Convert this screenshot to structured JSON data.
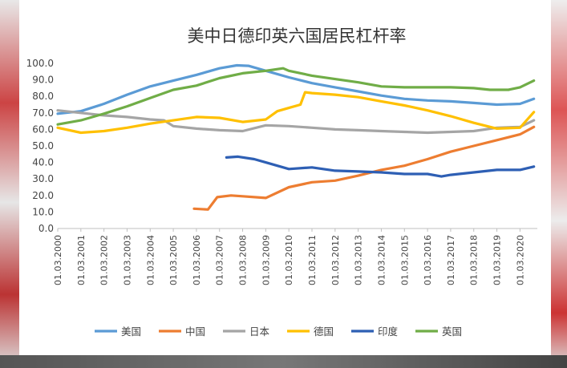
{
  "chart_data": {
    "type": "line",
    "title": "美中日德印英六国居民杠杆率",
    "xlabel": "",
    "ylabel": "",
    "ylim": [
      0,
      100
    ],
    "yticks": [
      "0.0",
      "10.0",
      "20.0",
      "30.0",
      "40.0",
      "50.0",
      "60.0",
      "70.0",
      "80.0",
      "90.0",
      "100.0"
    ],
    "x_tick_labels": [
      "01.03.2000",
      "01.03.2001",
      "01.03.2002",
      "01.03.2003",
      "01.03.2004",
      "01.03.2005",
      "01.03.2006",
      "01.03.2007",
      "01.03.2008",
      "01.03.2009",
      "01.03.2010",
      "01.03.2011",
      "01.03.2012",
      "01.03.2013",
      "01.03.2014",
      "01.03.2015",
      "01.03.2016",
      "01.03.2017",
      "01.03.2018",
      "01.03.2019",
      "01.03.2020"
    ],
    "x_range": [
      2000,
      2020.75
    ],
    "grid": false,
    "legend_position": "bottom",
    "series": [
      {
        "name": "美国",
        "color": "#5b9bd5",
        "points": [
          [
            2000,
            69.5
          ],
          [
            2001,
            71
          ],
          [
            2002,
            75.5
          ],
          [
            2003,
            81
          ],
          [
            2004,
            86
          ],
          [
            2005,
            89.5
          ],
          [
            2006,
            93
          ],
          [
            2007,
            97
          ],
          [
            2007.75,
            98.8
          ],
          [
            2008.25,
            98.5
          ],
          [
            2009,
            95.5
          ],
          [
            2010,
            91.5
          ],
          [
            2011,
            88
          ],
          [
            2012,
            85.5
          ],
          [
            2013,
            83
          ],
          [
            2014,
            80.5
          ],
          [
            2015,
            78.5
          ],
          [
            2016,
            77.5
          ],
          [
            2017,
            77
          ],
          [
            2018,
            76
          ],
          [
            2019,
            75
          ],
          [
            2020,
            75.5
          ],
          [
            2020.6,
            78.5
          ]
        ]
      },
      {
        "name": "中国",
        "color": "#ed7d31",
        "points": [
          [
            2005.9,
            12
          ],
          [
            2006.5,
            11.5
          ],
          [
            2006.9,
            19
          ],
          [
            2007.5,
            20
          ],
          [
            2008,
            19.5
          ],
          [
            2009,
            18.5
          ],
          [
            2010,
            25
          ],
          [
            2011,
            28
          ],
          [
            2012,
            29
          ],
          [
            2013,
            32
          ],
          [
            2014,
            35.5
          ],
          [
            2015,
            38
          ],
          [
            2016,
            42
          ],
          [
            2017,
            46.5
          ],
          [
            2018,
            50
          ],
          [
            2019,
            53.5
          ],
          [
            2020,
            57
          ],
          [
            2020.6,
            61.5
          ]
        ]
      },
      {
        "name": "日本",
        "color": "#a5a5a5",
        "points": [
          [
            2000,
            71.5
          ],
          [
            2001,
            70
          ],
          [
            2002,
            68.5
          ],
          [
            2003,
            67.5
          ],
          [
            2004,
            66
          ],
          [
            2004.6,
            65.5
          ],
          [
            2005,
            62
          ],
          [
            2006,
            60.5
          ],
          [
            2007,
            59.5
          ],
          [
            2008,
            59
          ],
          [
            2009,
            62.5
          ],
          [
            2010,
            62
          ],
          [
            2011,
            61
          ],
          [
            2012,
            60
          ],
          [
            2013,
            59.5
          ],
          [
            2014,
            59
          ],
          [
            2015,
            58.5
          ],
          [
            2016,
            58
          ],
          [
            2017,
            58.5
          ],
          [
            2018,
            59
          ],
          [
            2019,
            61
          ],
          [
            2020,
            61.5
          ],
          [
            2020.6,
            65.5
          ]
        ]
      },
      {
        "name": "德国",
        "color": "#ffc000",
        "points": [
          [
            2000,
            61
          ],
          [
            2001,
            58
          ],
          [
            2002,
            59
          ],
          [
            2003,
            61
          ],
          [
            2004,
            63.5
          ],
          [
            2005,
            65.5
          ],
          [
            2006,
            67.5
          ],
          [
            2007,
            67
          ],
          [
            2008,
            64.5
          ],
          [
            2009,
            66
          ],
          [
            2009.5,
            71
          ],
          [
            2010,
            73
          ],
          [
            2010.5,
            75
          ],
          [
            2010.7,
            82.5
          ],
          [
            2011,
            82
          ],
          [
            2012,
            81
          ],
          [
            2013,
            79.5
          ],
          [
            2014,
            77
          ],
          [
            2015,
            74.5
          ],
          [
            2016,
            71.5
          ],
          [
            2017,
            68
          ],
          [
            2018,
            64
          ],
          [
            2019,
            60.5
          ],
          [
            2020,
            61
          ],
          [
            2020.6,
            70.5
          ]
        ]
      },
      {
        "name": "印度",
        "color": "#2e5fb4",
        "points": [
          [
            2007.3,
            43
          ],
          [
            2007.8,
            43.5
          ],
          [
            2008.5,
            42
          ],
          [
            2009,
            40
          ],
          [
            2010,
            36
          ],
          [
            2011,
            37
          ],
          [
            2012,
            35
          ],
          [
            2013,
            34.5
          ],
          [
            2014,
            34
          ],
          [
            2015,
            33
          ],
          [
            2016,
            33
          ],
          [
            2016.6,
            31.5
          ],
          [
            2017,
            32.5
          ],
          [
            2018,
            34
          ],
          [
            2019,
            35.5
          ],
          [
            2020,
            35.5
          ],
          [
            2020.6,
            37.5
          ]
        ]
      },
      {
        "name": "英国",
        "color": "#70ad47",
        "points": [
          [
            2000,
            63
          ],
          [
            2001,
            65.5
          ],
          [
            2002,
            69.5
          ],
          [
            2003,
            74
          ],
          [
            2004,
            79
          ],
          [
            2005,
            84
          ],
          [
            2006,
            86.5
          ],
          [
            2007,
            91
          ],
          [
            2008,
            94
          ],
          [
            2009,
            95.5
          ],
          [
            2009.75,
            97
          ],
          [
            2010,
            95.5
          ],
          [
            2011,
            92.5
          ],
          [
            2012,
            90.5
          ],
          [
            2013,
            88.5
          ],
          [
            2014,
            86
          ],
          [
            2015,
            85.5
          ],
          [
            2016,
            85.5
          ],
          [
            2017,
            85.5
          ],
          [
            2018,
            85
          ],
          [
            2018.7,
            84
          ],
          [
            2019.5,
            84
          ],
          [
            2020,
            85.5
          ],
          [
            2020.6,
            89.5
          ]
        ]
      }
    ]
  }
}
